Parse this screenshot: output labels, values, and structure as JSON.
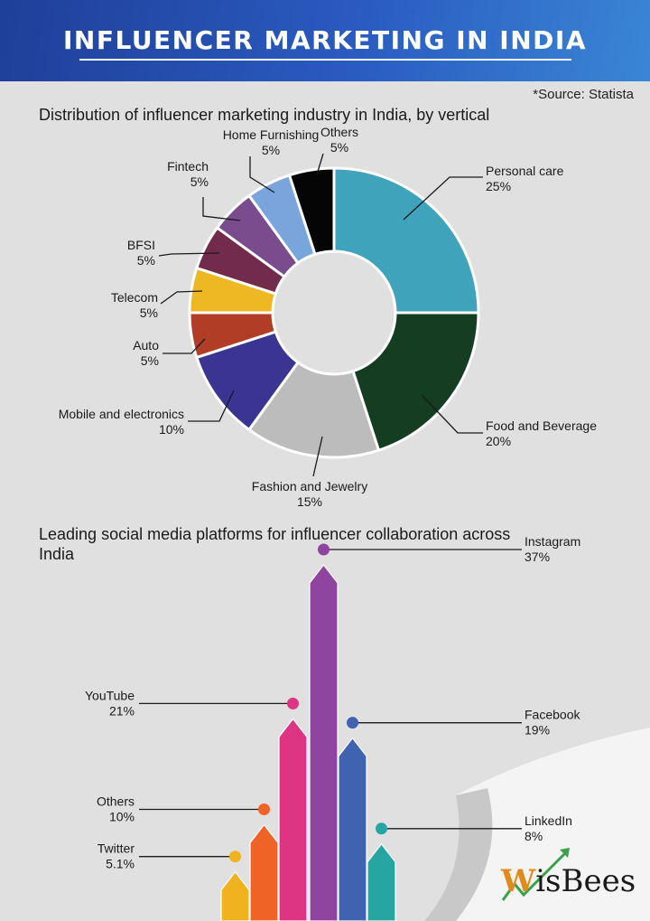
{
  "header": {
    "title": "INFLUENCER MARKETING IN INDIA"
  },
  "source": "*Source: Statista",
  "brand": {
    "mark": "W",
    "name": "isBees"
  },
  "colors": {
    "banner": "#2a5bc0",
    "background": "#e0e0e0"
  },
  "chart_data": [
    {
      "type": "pie",
      "donut": true,
      "title": "Distribution of influencer marketing industry in India, by vertical",
      "slices": [
        {
          "label": "Personal care",
          "value": 25,
          "display": "25%",
          "color": "#3ea3bb"
        },
        {
          "label": "Food and Beverage",
          "value": 20,
          "display": "20%",
          "color": "#153d22"
        },
        {
          "label": "Fashion and Jewelry",
          "value": 15,
          "display": "15%",
          "color": "#bcbcbc"
        },
        {
          "label": "Mobile and electronics",
          "value": 10,
          "display": "10%",
          "color": "#3a3592"
        },
        {
          "label": "Auto",
          "value": 5,
          "display": "5%",
          "color": "#b13d26"
        },
        {
          "label": "Telecom",
          "value": 5,
          "display": "5%",
          "color": "#edb823"
        },
        {
          "label": "BFSI",
          "value": 5,
          "display": "5%",
          "color": "#732b4c"
        },
        {
          "label": "Fintech",
          "value": 5,
          "display": "5%",
          "color": "#7a4b8d"
        },
        {
          "label": "Home Furnishing",
          "value": 5,
          "display": "5%",
          "color": "#79a5dc"
        },
        {
          "label": "Others",
          "value": 5,
          "display": "5%",
          "color": "#050505"
        }
      ]
    },
    {
      "type": "bar",
      "title": "Leading social media platforms for influencer collaboration across India",
      "categories": [
        "Twitter",
        "Others",
        "YouTube",
        "Instagram",
        "Facebook",
        "LinkedIn"
      ],
      "values": [
        5.1,
        10,
        21,
        37,
        19,
        8
      ],
      "display": [
        "5.1%",
        "10%",
        "21%",
        "37%",
        "19%",
        "8%"
      ],
      "colors": [
        "#f0b21f",
        "#ef6426",
        "#dd3484",
        "#8f44a0",
        "#3f63b0",
        "#26a5a3"
      ]
    }
  ]
}
